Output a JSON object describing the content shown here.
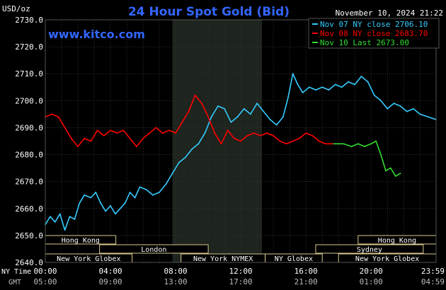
{
  "chart_data": {
    "type": "line",
    "title": "24 Hour Spot Gold (Bid)",
    "unit_label": "USD/oz",
    "watermark": "www.kitco.com",
    "timestamp": "November 10, 2024 21:22",
    "ylim": [
      2640,
      2730
    ],
    "y_ticks": [
      "2730.0",
      "2720.0",
      "2710.0",
      "2700.0",
      "2690.0",
      "2680.0",
      "2670.0",
      "2660.0",
      "2650.0",
      "2640.0"
    ],
    "x_row_labels": {
      "ny": "NY Time",
      "gmt": "GMT"
    },
    "x_ticks_ny": [
      "00:00",
      "04:00",
      "08:00",
      "12:00",
      "16:00",
      "20:00",
      "23:59"
    ],
    "x_ticks_gmt": [
      "05:00",
      "09:00",
      "13:00",
      "17:00",
      "21:00",
      "01:00",
      "04:59"
    ],
    "grid": true,
    "legend_position": "top-right",
    "highlight_hours": [
      7.8,
      13.3
    ],
    "markets": [
      {
        "label": "Hong Kong",
        "start": 0,
        "end": 4.33
      },
      {
        "label": "London",
        "start": 3.33,
        "end": 10
      },
      {
        "label": "New York Globex",
        "start": 0,
        "end": 5.33
      },
      {
        "label": "New York NYMEX",
        "start": 8.33,
        "end": 13.5
      },
      {
        "label": "NY Globex",
        "start": 13.5,
        "end": 17
      },
      {
        "label": "Hong Kong",
        "start": 19.2,
        "end": 23.99
      },
      {
        "label": "Sydney",
        "start": 16.6,
        "end": 23.2
      },
      {
        "label": "New York Globex",
        "start": 18,
        "end": 23.99
      }
    ],
    "series": [
      {
        "name": "Nov 07 NY close 2706.10",
        "color": "#33ccff",
        "points": [
          [
            0,
            2654
          ],
          [
            0.3,
            2657
          ],
          [
            0.6,
            2655
          ],
          [
            0.9,
            2658
          ],
          [
            1.2,
            2652
          ],
          [
            1.5,
            2657
          ],
          [
            1.8,
            2656
          ],
          [
            2.1,
            2662
          ],
          [
            2.4,
            2665
          ],
          [
            2.8,
            2664
          ],
          [
            3.1,
            2666
          ],
          [
            3.4,
            2662
          ],
          [
            3.7,
            2659
          ],
          [
            4.0,
            2661
          ],
          [
            4.3,
            2658
          ],
          [
            4.6,
            2660
          ],
          [
            4.9,
            2662
          ],
          [
            5.2,
            2666
          ],
          [
            5.5,
            2664
          ],
          [
            5.8,
            2668
          ],
          [
            6.2,
            2667
          ],
          [
            6.6,
            2665
          ],
          [
            7.0,
            2666
          ],
          [
            7.4,
            2669
          ],
          [
            7.8,
            2673
          ],
          [
            8.2,
            2677
          ],
          [
            8.6,
            2679
          ],
          [
            9.0,
            2682
          ],
          [
            9.4,
            2684
          ],
          [
            9.8,
            2688
          ],
          [
            10.2,
            2694
          ],
          [
            10.6,
            2698
          ],
          [
            11.0,
            2697
          ],
          [
            11.4,
            2692
          ],
          [
            11.8,
            2694
          ],
          [
            12.2,
            2697
          ],
          [
            12.6,
            2695
          ],
          [
            13.0,
            2699
          ],
          [
            13.4,
            2696
          ],
          [
            13.8,
            2693
          ],
          [
            14.2,
            2691
          ],
          [
            14.6,
            2694
          ],
          [
            14.9,
            2701
          ],
          [
            15.2,
            2710
          ],
          [
            15.5,
            2706
          ],
          [
            15.8,
            2703
          ],
          [
            16.2,
            2705
          ],
          [
            16.6,
            2704
          ],
          [
            17.0,
            2705
          ],
          [
            17.4,
            2704
          ],
          [
            17.8,
            2706
          ],
          [
            18.2,
            2705
          ],
          [
            18.6,
            2707
          ],
          [
            19.0,
            2706
          ],
          [
            19.4,
            2709
          ],
          [
            19.8,
            2707
          ],
          [
            20.2,
            2702
          ],
          [
            20.6,
            2700
          ],
          [
            21.0,
            2697
          ],
          [
            21.4,
            2699
          ],
          [
            21.8,
            2698
          ],
          [
            22.2,
            2696
          ],
          [
            22.6,
            2697
          ],
          [
            23.0,
            2695
          ],
          [
            23.5,
            2694
          ],
          [
            23.99,
            2693
          ]
        ]
      },
      {
        "name": "Nov 08 NY close 2683.70",
        "color": "#ff0000",
        "points": [
          [
            0,
            2694
          ],
          [
            0.4,
            2695
          ],
          [
            0.8,
            2694
          ],
          [
            1.2,
            2690
          ],
          [
            1.6,
            2686
          ],
          [
            2.0,
            2683
          ],
          [
            2.4,
            2686
          ],
          [
            2.8,
            2685
          ],
          [
            3.2,
            2689
          ],
          [
            3.6,
            2687
          ],
          [
            4.0,
            2689
          ],
          [
            4.4,
            2688
          ],
          [
            4.8,
            2689
          ],
          [
            5.2,
            2686
          ],
          [
            5.6,
            2683
          ],
          [
            6.0,
            2686
          ],
          [
            6.4,
            2688
          ],
          [
            6.8,
            2690
          ],
          [
            7.2,
            2688
          ],
          [
            7.6,
            2689
          ],
          [
            8.0,
            2688
          ],
          [
            8.4,
            2692
          ],
          [
            8.8,
            2696
          ],
          [
            9.2,
            2702
          ],
          [
            9.6,
            2699
          ],
          [
            10.0,
            2694
          ],
          [
            10.4,
            2688
          ],
          [
            10.8,
            2684
          ],
          [
            11.2,
            2689
          ],
          [
            11.6,
            2686
          ],
          [
            12.0,
            2685
          ],
          [
            12.4,
            2687
          ],
          [
            12.8,
            2688
          ],
          [
            13.2,
            2687
          ],
          [
            13.6,
            2688
          ],
          [
            14.0,
            2687
          ],
          [
            14.4,
            2685
          ],
          [
            14.8,
            2684
          ],
          [
            15.2,
            2685
          ],
          [
            15.6,
            2686
          ],
          [
            16.0,
            2688
          ],
          [
            16.4,
            2687
          ],
          [
            16.8,
            2685
          ],
          [
            17.2,
            2684
          ],
          [
            17.7,
            2684
          ]
        ]
      },
      {
        "name": "Nov 10 Last 2673.00",
        "color": "#33dd33",
        "points": [
          [
            17.7,
            2684
          ],
          [
            18.3,
            2684
          ],
          [
            18.8,
            2683
          ],
          [
            19.2,
            2684
          ],
          [
            19.6,
            2683
          ],
          [
            20.0,
            2684
          ],
          [
            20.3,
            2685
          ],
          [
            20.6,
            2680
          ],
          [
            20.9,
            2674
          ],
          [
            21.2,
            2675
          ],
          [
            21.5,
            2672
          ],
          [
            21.8,
            2673
          ]
        ]
      }
    ]
  }
}
